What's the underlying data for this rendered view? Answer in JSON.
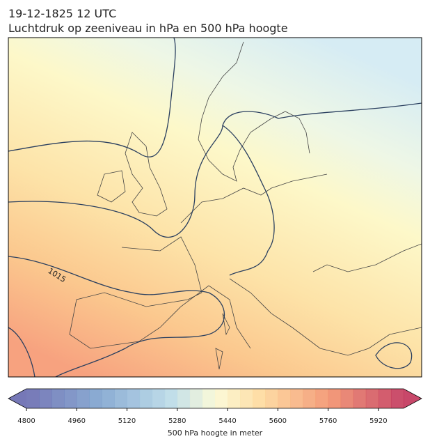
{
  "title": "19-12-1825 12 UTC",
  "subtitle": "Luchtdruk op zeeniveau in hPa en 500 hPa hoogte",
  "contour_label": "1015",
  "colorbar": {
    "label": "500 hPa hoogte in meter",
    "lim": [
      4800,
      6000
    ],
    "ticks": [
      4800,
      4960,
      5120,
      5280,
      5440,
      5600,
      5760,
      5920
    ]
  }
}
